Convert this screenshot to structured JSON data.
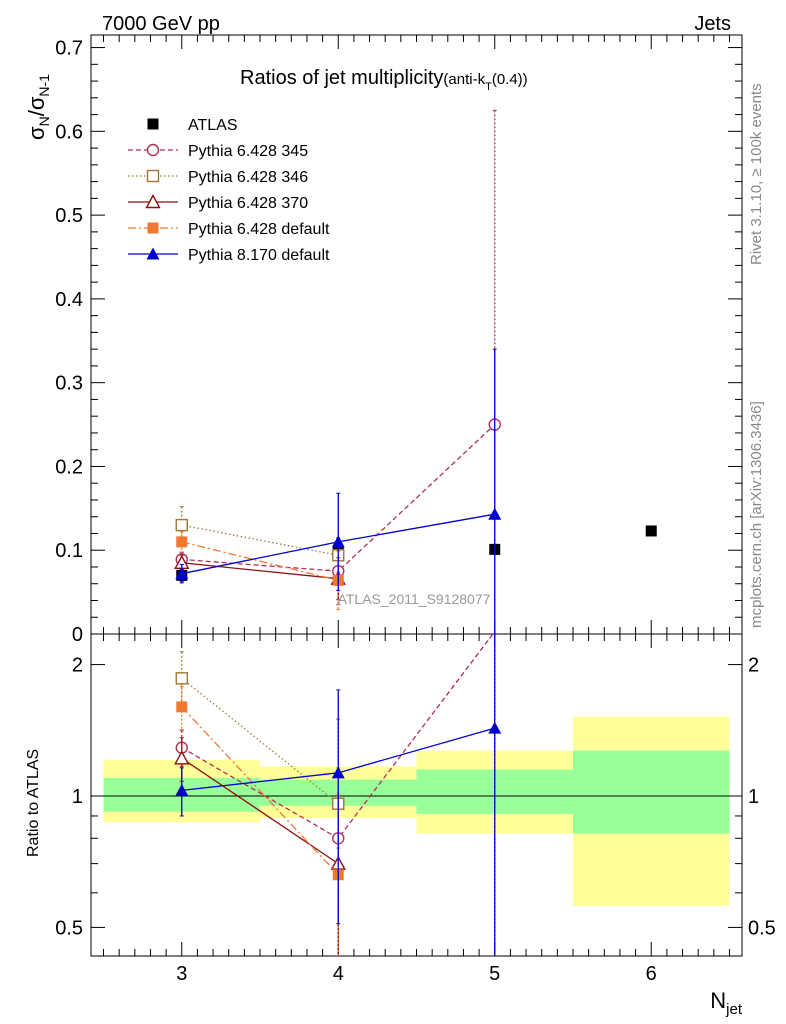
{
  "header": {
    "left": "7000 GeV pp",
    "right": "Jets"
  },
  "side_text": {
    "rivet": "Rivet 3.1.10, ≥ 100k events",
    "mcplots": "mcplots.cern.ch [arXiv:1306.3436]"
  },
  "chart_data": [
    {
      "type": "scatter",
      "panel": "main",
      "title": "Ratios of jet multiplicity",
      "title_suffix": "(anti-k",
      "title_sub": "T",
      "title_end": "(0.4))",
      "watermark": "ATLAS_2011_S9128077",
      "ylabel": "σN/σN-1",
      "ylabel_main": "σ",
      "ylabel_sub1": "N",
      "ylabel_mid": "/σ",
      "ylabel_sub2": "N-1",
      "xlim": [
        2.42,
        6.58
      ],
      "ylim": [
        0,
        0.715
      ],
      "y_ticks": [
        0,
        0.1,
        0.2,
        0.3,
        0.4,
        0.5,
        0.6,
        0.7
      ],
      "y_tick_labels": [
        "0",
        "0.1",
        "0.2",
        "0.3",
        "0.4",
        "0.5",
        "0.6",
        "0.7"
      ],
      "legend_position": "top-left",
      "series": [
        {
          "name": "ATLAS",
          "color": "#000000",
          "marker": "square-filled",
          "dash": "",
          "x": [
            3,
            4,
            5,
            6
          ],
          "y": [
            0.07,
            0.098,
            0.101,
            0.123
          ],
          "err": [
            0.007,
            0.01,
            0.006,
            0.005
          ],
          "line": false
        },
        {
          "name": "Pythia 6.428 345",
          "color": "#b03050",
          "marker": "circle-open",
          "dash": "5,3",
          "x": [
            3,
            4,
            5
          ],
          "y": [
            0.089,
            0.075,
            0.25
          ],
          "err": [
            0.008,
            0.04,
            0.375
          ],
          "line": true
        },
        {
          "name": "Pythia 6.428 346",
          "color": "#a07830",
          "marker": "square-open",
          "dash": "1.5,2.5",
          "x": [
            3,
            4
          ],
          "y": [
            0.13,
            0.094
          ],
          "err": [
            0.022,
            0.02
          ],
          "line": true
        },
        {
          "name": "Pythia 6.428 370",
          "color": "#8b1010",
          "marker": "triangle-open",
          "dash": "",
          "x": [
            3,
            4
          ],
          "y": [
            0.085,
            0.066
          ],
          "err": [
            0.009,
            0.025
          ],
          "line": true
        },
        {
          "name": "Pythia 6.428 default",
          "color": "#f07830",
          "marker": "square-filled",
          "dash": "8,3,2,3",
          "x": [
            3,
            4
          ],
          "y": [
            0.11,
            0.064
          ],
          "err": [
            0.012,
            0.035
          ],
          "line": true
        },
        {
          "name": "Pythia 8.170 default",
          "color": "#0000cc",
          "marker": "triangle-filled",
          "dash": "",
          "x": [
            3,
            4,
            5
          ],
          "y": [
            0.072,
            0.11,
            0.143
          ],
          "err": [
            0.011,
            0.058,
            0.197
          ],
          "line": true
        }
      ]
    },
    {
      "type": "scatter",
      "panel": "ratio",
      "ylabel": "Ratio to ATLAS",
      "xlabel": "Njet",
      "xlabel_main": "N",
      "xlabel_sub": "jet",
      "xlim": [
        2.42,
        6.58
      ],
      "ylim": [
        0.43,
        2.35
      ],
      "log_y": true,
      "x_ticks": [
        3,
        4,
        5,
        6
      ],
      "x_tick_labels": [
        "3",
        "4",
        "5",
        "6"
      ],
      "y_ticks": [
        0.5,
        1,
        2
      ],
      "y_tick_labels": [
        "0.5",
        "1",
        "2"
      ],
      "bands": [
        {
          "x0": 2.5,
          "x1": 3.5,
          "y_lo": 0.87,
          "y_hi": 1.21,
          "g_lo": 0.92,
          "g_hi": 1.1
        },
        {
          "x0": 3.5,
          "x1": 4.5,
          "y_lo": 0.89,
          "y_hi": 1.17,
          "g_lo": 0.95,
          "g_hi": 1.09
        },
        {
          "x0": 4.5,
          "x1": 5.5,
          "y_lo": 0.82,
          "y_hi": 1.27,
          "g_lo": 0.91,
          "g_hi": 1.15
        },
        {
          "x0": 5.5,
          "x1": 6.5,
          "y_lo": 0.56,
          "y_hi": 1.52,
          "g_lo": 0.82,
          "g_hi": 1.27
        }
      ],
      "series": [
        {
          "name": "ATLAS",
          "color": "#000000",
          "x": [],
          "y": [],
          "err": [],
          "line": false
        },
        {
          "name": "Pythia 6.428 345",
          "color": "#b03050",
          "x": [
            3,
            4,
            5
          ],
          "y": [
            1.29,
            0.8,
            2.38
          ],
          "err": [
            0.12,
            0.7,
            2.0
          ],
          "line": true
        },
        {
          "name": "Pythia 6.428 346",
          "color": "#a07830",
          "x": [
            3,
            4
          ],
          "y": [
            1.86,
            0.96
          ],
          "err": [
            0.28,
            0.2
          ],
          "line": true
        },
        {
          "name": "Pythia 6.428 370",
          "color": "#8b1010",
          "x": [
            3,
            4
          ],
          "y": [
            1.22,
            0.7
          ],
          "err": [
            0.14,
            0.3
          ],
          "line": true
        },
        {
          "name": "Pythia 6.428 default",
          "color": "#f07830",
          "x": [
            3,
            4
          ],
          "y": [
            1.6,
            0.66
          ],
          "err": [
            0.18,
            0.35
          ],
          "line": true
        },
        {
          "name": "Pythia 8.170 default",
          "color": "#0000cc",
          "x": [
            3,
            4,
            5
          ],
          "y": [
            1.03,
            1.13,
            1.43
          ],
          "err": [
            0.13,
            0.62,
            1.6
          ],
          "line": true
        }
      ]
    }
  ]
}
